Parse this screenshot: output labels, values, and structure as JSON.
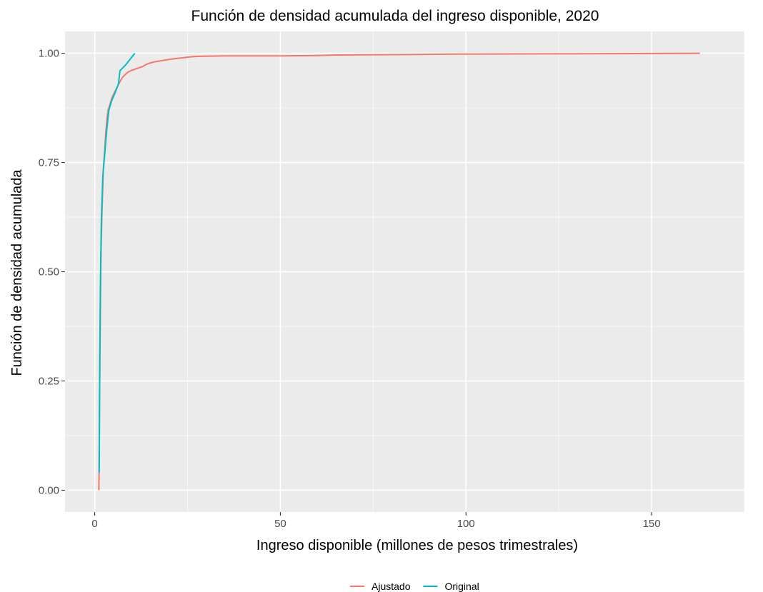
{
  "chart_data": {
    "type": "line",
    "title": "Función de densidad acumulada del ingreso disponible, 2020",
    "xlabel": "Ingreso disponible (millones de pesos trimestrales)",
    "ylabel": "Función de densidad acumulada",
    "xlim": [
      -8,
      175
    ],
    "ylim": [
      -0.05,
      1.05
    ],
    "x_ticks": [
      0,
      50,
      100,
      150
    ],
    "x_tick_labels": [
      "0",
      "50",
      "100",
      "150"
    ],
    "y_ticks": [
      0,
      0.25,
      0.5,
      0.75,
      1.0
    ],
    "y_tick_labels": [
      "0.00",
      "0.25",
      "0.50",
      "0.75",
      "1.00"
    ],
    "grid": true,
    "legend_position": "bottom",
    "series": [
      {
        "name": "Ajustado",
        "color": "#F8766D",
        "x": [
          1.1,
          1.2,
          1.3,
          1.5,
          1.7,
          2.0,
          2.3,
          2.7,
          3.0,
          3.3,
          3.6,
          4.0,
          4.5,
          5.0,
          5.6,
          6.2,
          6.8,
          7.5,
          8.3,
          9.0,
          10.0,
          11.0,
          12.0,
          13.0,
          14.0,
          15.0,
          16.5,
          18.0,
          20.0,
          22.0,
          24.0,
          26.0,
          28.0,
          35.0,
          50.0,
          60.0,
          65.0,
          85.0,
          95.0,
          133.0,
          163.0
        ],
        "y": [
          0.0,
          0.05,
          0.2,
          0.4,
          0.55,
          0.65,
          0.73,
          0.78,
          0.82,
          0.85,
          0.87,
          0.88,
          0.895,
          0.905,
          0.915,
          0.925,
          0.935,
          0.945,
          0.952,
          0.957,
          0.961,
          0.964,
          0.967,
          0.97,
          0.975,
          0.978,
          0.981,
          0.983,
          0.986,
          0.988,
          0.99,
          0.992,
          0.993,
          0.994,
          0.994,
          0.995,
          0.996,
          0.997,
          0.998,
          0.999,
          1.0
        ]
      },
      {
        "name": "Original",
        "color": "#00BFC4",
        "x": [
          1.2,
          1.3,
          1.5,
          1.8,
          2.2,
          2.7,
          3.2,
          3.8,
          4.5,
          5.5,
          6.4,
          6.8,
          8.5,
          10.8
        ],
        "y": [
          0.04,
          0.2,
          0.45,
          0.62,
          0.72,
          0.77,
          0.82,
          0.87,
          0.89,
          0.91,
          0.93,
          0.96,
          0.975,
          1.0
        ]
      }
    ]
  }
}
